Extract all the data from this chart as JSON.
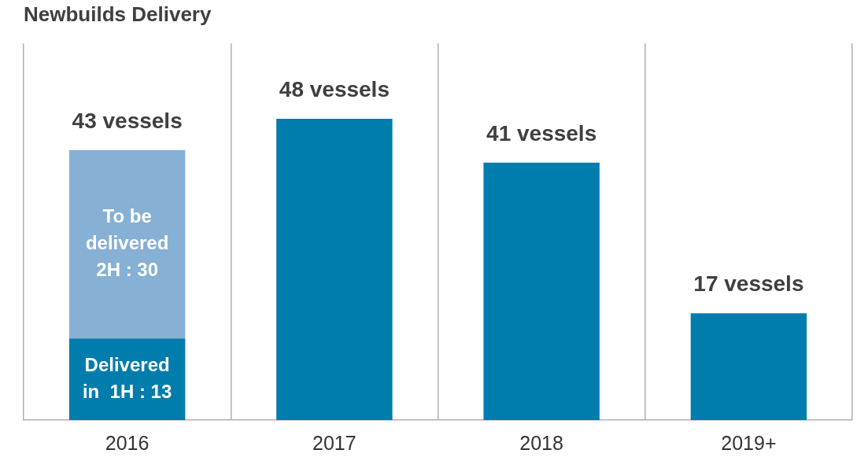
{
  "chart_data": {
    "type": "bar",
    "title": "Newbuilds Delivery",
    "categories": [
      "2016",
      "2017",
      "2018",
      "2019+"
    ],
    "stacked": true,
    "series": [
      {
        "color": "#007cad",
        "values": [
          13,
          48,
          41,
          17
        ],
        "value_labels": [
          "Delivered\nin  1H : 13",
          null,
          null,
          null
        ]
      },
      {
        "color": "#86b0d4",
        "values": [
          30,
          null,
          null,
          null
        ],
        "value_labels": [
          "To be\ndelivered\n2H : 30",
          null,
          null,
          null
        ]
      }
    ],
    "totals": [
      "43 vessels",
      "48 vessels",
      "41 vessels",
      "17 vessels"
    ],
    "ylim": [
      0,
      60
    ],
    "tick_labels": "x",
    "grid": "x",
    "legend": false
  }
}
